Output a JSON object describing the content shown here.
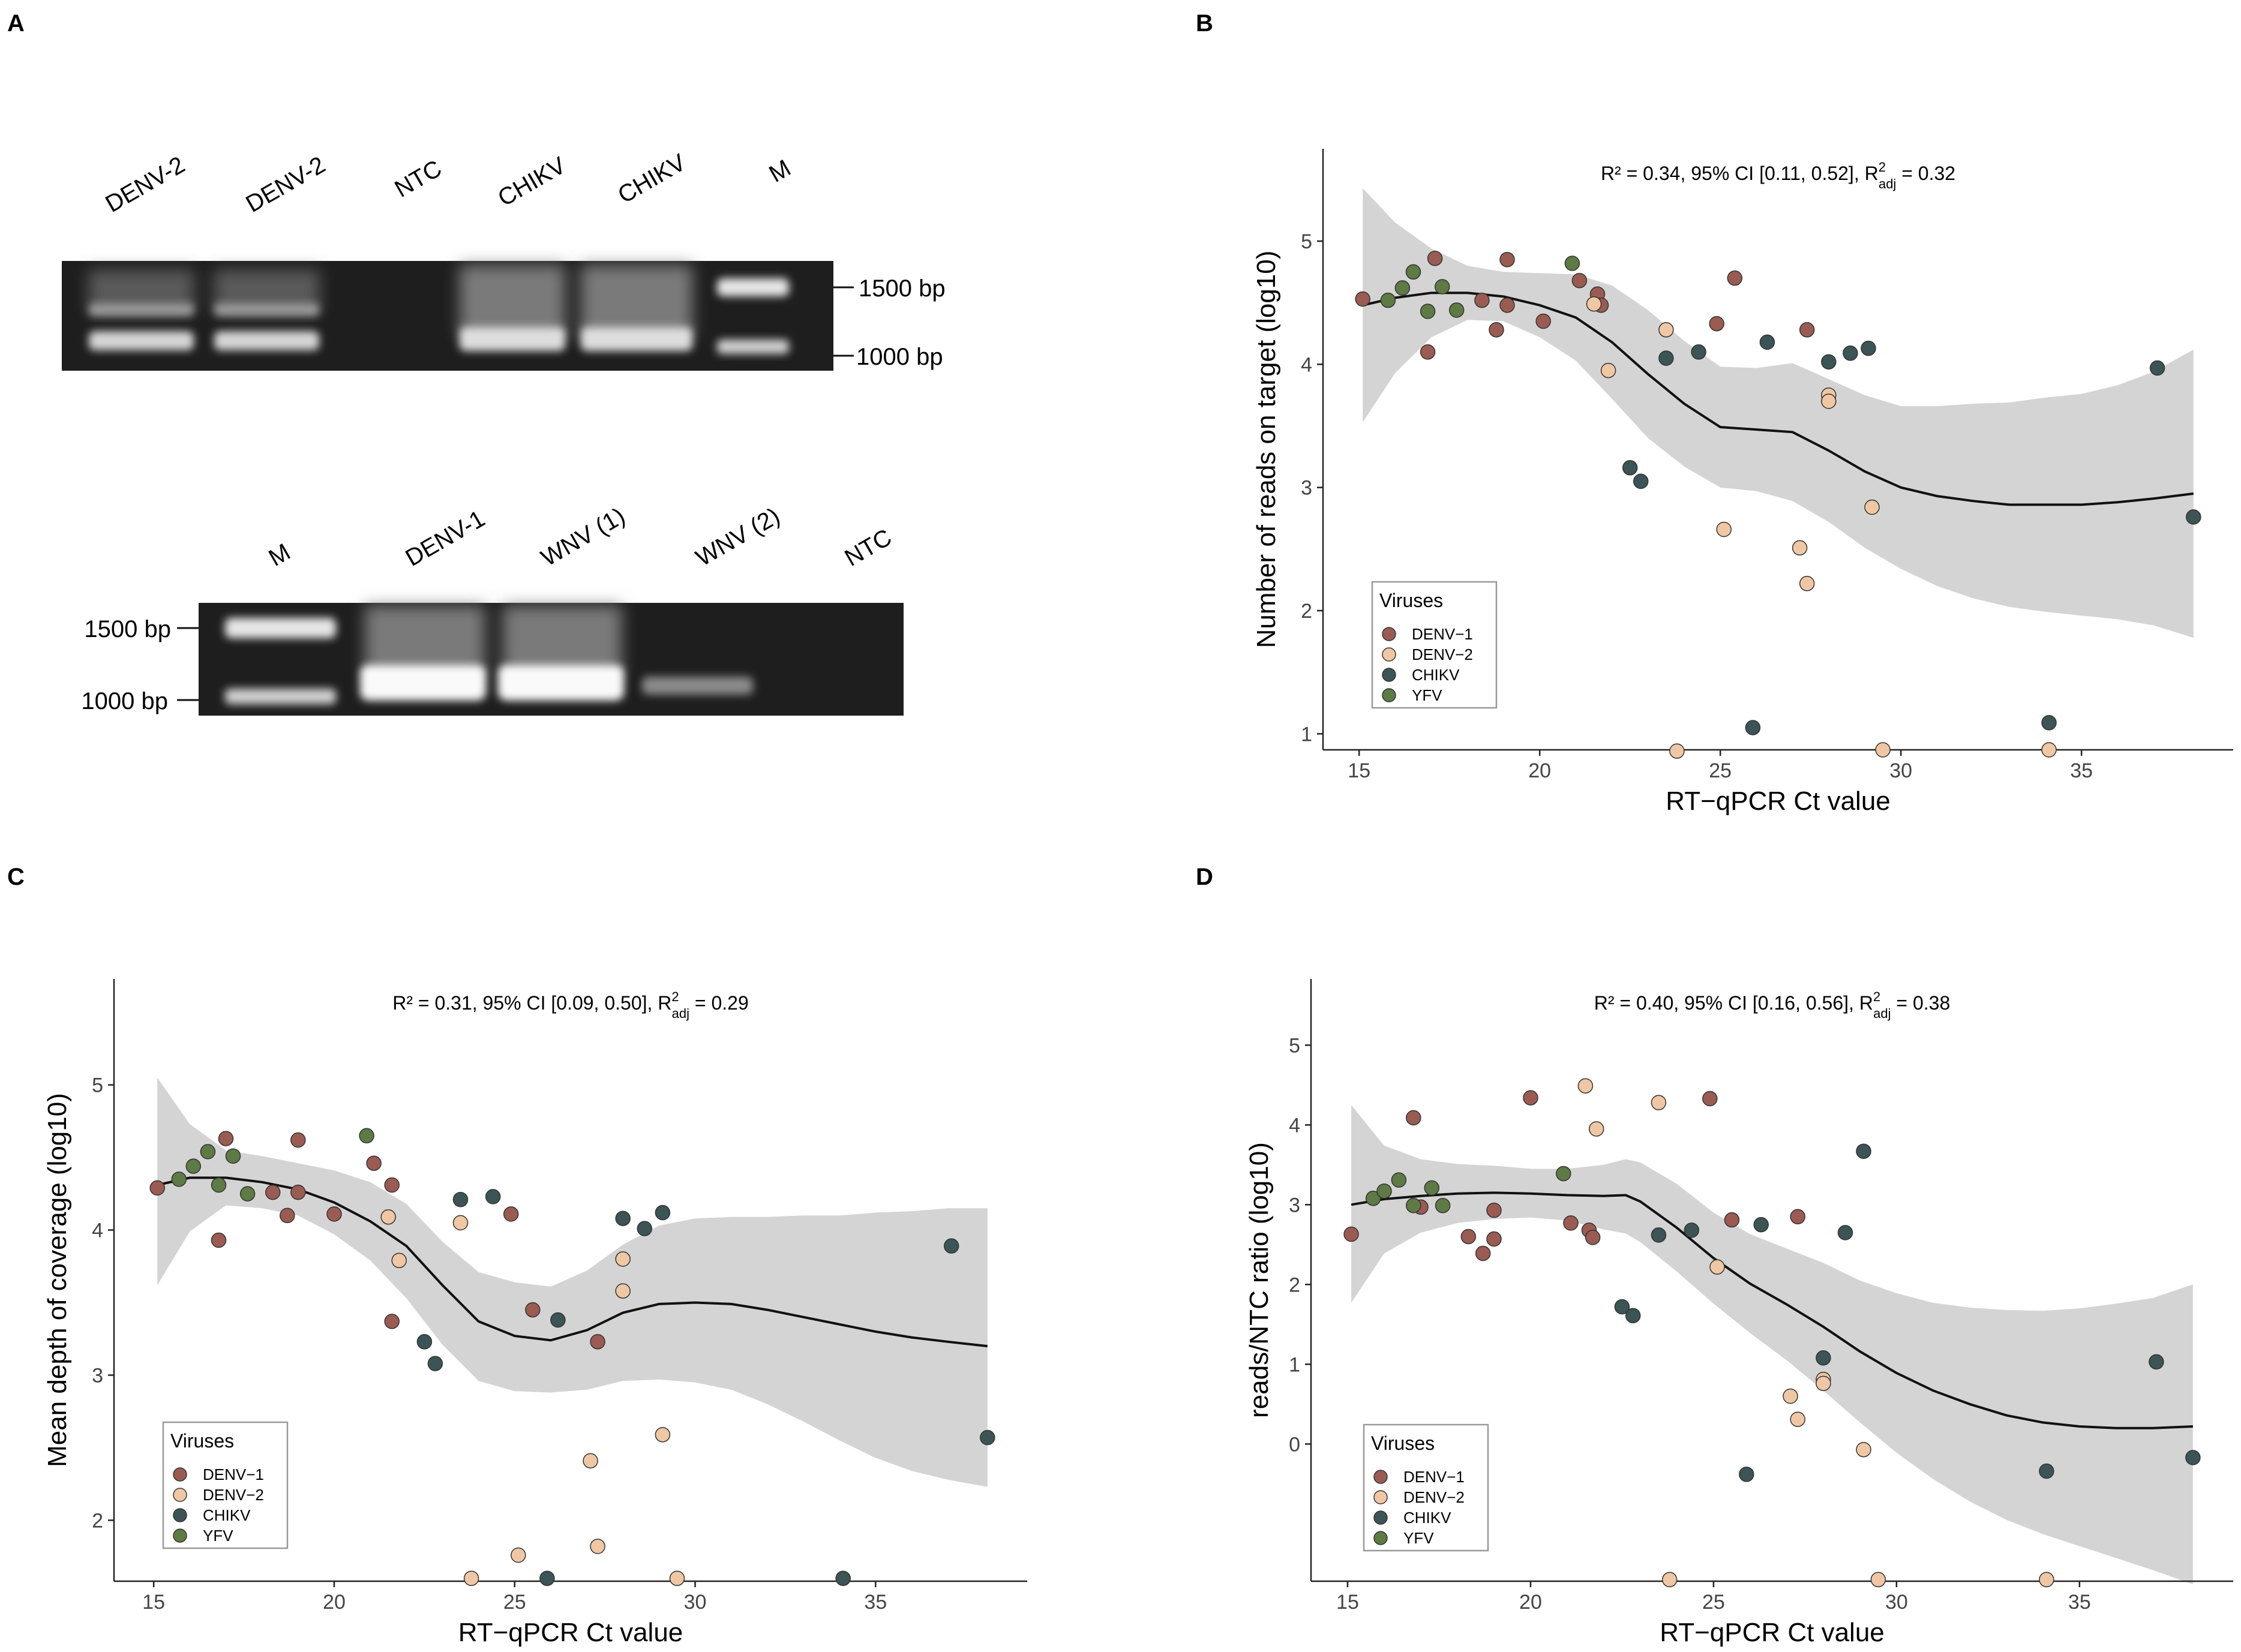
{
  "panel_letters": [
    "A",
    "B",
    "C",
    "D"
  ],
  "gel_top": {
    "lane_labels": [
      "DENV-2",
      "DENV-2",
      "NTC",
      "CHIKV",
      "CHIKV",
      "M"
    ],
    "marker_labels": [
      "1500 bp",
      "1000 bp"
    ]
  },
  "gel_bottom": {
    "lane_labels": [
      "M",
      "DENV-1",
      "WNV (1)",
      "WNV (2)",
      "NTC"
    ],
    "marker_labels": [
      "1500 bp",
      "1000 bp"
    ]
  },
  "colors": {
    "DENV-1": "#9a5b53",
    "DENV-2": "#f0c7a4",
    "CHIKV": "#3c5455",
    "YFV": "#5e7a45",
    "band": "#f2f2f2",
    "ribbon": "#d4d4d4"
  },
  "chart_data": [
    {
      "id": "B",
      "type": "scatter",
      "title": "",
      "annotation": {
        "pre": "R² = 0.34, 95% CI [0.11, 0.52], R",
        "sup": "2",
        "sub": "adj",
        "post": " = 0.32"
      },
      "xlabel": "RT−qPCR Ct value",
      "ylabel": "Number of reads on target (log10)",
      "xlim": [
        14,
        39.2
      ],
      "ylim": [
        0.87,
        5.75
      ],
      "xticks": [
        15,
        20,
        25,
        30,
        35
      ],
      "yticks": [
        1,
        2,
        3,
        4,
        5
      ],
      "legend": {
        "title": "Viruses",
        "position": "bottom-left",
        "entries": [
          "DENV−1",
          "DENV−2",
          "CHIKV",
          "YFV"
        ]
      },
      "series": [
        {
          "name": "DENV-1",
          "points": [
            [
              15.1,
              4.53
            ],
            [
              16.9,
              4.1
            ],
            [
              17.1,
              4.86
            ],
            [
              18.4,
              4.52
            ],
            [
              18.8,
              4.28
            ],
            [
              19.1,
              4.85
            ],
            [
              19.1,
              4.48
            ],
            [
              20.1,
              4.35
            ],
            [
              21.1,
              4.68
            ],
            [
              21.6,
              4.57
            ],
            [
              21.7,
              4.48
            ],
            [
              24.9,
              4.33
            ],
            [
              25.4,
              4.7
            ],
            [
              27.4,
              4.28
            ]
          ]
        },
        {
          "name": "DENV-2",
          "points": [
            [
              21.5,
              4.49
            ],
            [
              21.9,
              3.95
            ],
            [
              23.5,
              4.28
            ],
            [
              23.8,
              0.86
            ],
            [
              25.1,
              2.66
            ],
            [
              27.2,
              2.51
            ],
            [
              27.4,
              2.22
            ],
            [
              28.0,
              3.75
            ],
            [
              28.0,
              3.7
            ],
            [
              29.2,
              2.84
            ],
            [
              29.5,
              0.87
            ],
            [
              34.1,
              0.87
            ]
          ]
        },
        {
          "name": "CHIKV",
          "points": [
            [
              22.5,
              3.16
            ],
            [
              22.8,
              3.05
            ],
            [
              23.5,
              4.05
            ],
            [
              24.4,
              4.1
            ],
            [
              25.9,
              1.05
            ],
            [
              26.3,
              4.18
            ],
            [
              28.0,
              4.02
            ],
            [
              28.6,
              4.09
            ],
            [
              29.1,
              4.13
            ],
            [
              34.1,
              1.09
            ],
            [
              37.1,
              3.97
            ],
            [
              38.1,
              2.76
            ]
          ]
        },
        {
          "name": "YFV",
          "points": [
            [
              15.8,
              4.52
            ],
            [
              16.2,
              4.62
            ],
            [
              16.5,
              4.75
            ],
            [
              16.9,
              4.43
            ],
            [
              17.3,
              4.63
            ],
            [
              17.7,
              4.44
            ],
            [
              20.9,
              4.82
            ]
          ]
        }
      ],
      "trend": {
        "x": [
          15.1,
          16,
          17,
          18,
          19,
          20,
          21,
          22,
          23,
          24,
          25,
          26,
          27,
          28,
          29,
          30,
          31,
          32,
          33,
          34,
          35,
          36,
          37,
          38.1
        ],
        "y": [
          4.48,
          4.54,
          4.58,
          4.58,
          4.55,
          4.48,
          4.38,
          4.18,
          3.92,
          3.68,
          3.49,
          3.47,
          3.45,
          3.3,
          3.13,
          3.0,
          2.93,
          2.89,
          2.86,
          2.86,
          2.86,
          2.88,
          2.91,
          2.95
        ],
        "lower": [
          3.53,
          3.93,
          4.22,
          4.36,
          4.35,
          4.22,
          4.03,
          3.72,
          3.4,
          3.17,
          3.0,
          2.97,
          2.89,
          2.72,
          2.51,
          2.34,
          2.2,
          2.1,
          2.03,
          1.99,
          1.96,
          1.93,
          1.88,
          1.78
        ],
        "upper": [
          5.43,
          5.15,
          4.94,
          4.8,
          4.75,
          4.74,
          4.73,
          4.64,
          4.44,
          4.19,
          3.98,
          3.97,
          4.01,
          3.88,
          3.75,
          3.66,
          3.66,
          3.68,
          3.69,
          3.73,
          3.76,
          3.83,
          3.94,
          4.12
        ]
      }
    },
    {
      "id": "C",
      "type": "scatter",
      "title": "",
      "annotation": {
        "pre": "R² = 0.31, 95% CI [0.09, 0.50], R",
        "sup": "2",
        "sub": "adj",
        "post": " = 0.29"
      },
      "xlabel": "RT−qPCR Ct value",
      "ylabel": "Mean depth of coverage (log10)",
      "xlim": [
        13.9,
        39.2
      ],
      "ylim": [
        1.58,
        5.73
      ],
      "xticks": [
        15,
        20,
        25,
        30,
        35
      ],
      "yticks": [
        2,
        3,
        4,
        5
      ],
      "legend": {
        "title": "Viruses",
        "position": "bottom-left",
        "entries": [
          "DENV−1",
          "DENV−2",
          "CHIKV",
          "YFV"
        ]
      },
      "series": [
        {
          "name": "DENV-1",
          "points": [
            [
              15.1,
              4.29
            ],
            [
              16.8,
              3.93
            ],
            [
              17.0,
              4.63
            ],
            [
              18.3,
              4.26
            ],
            [
              18.7,
              4.1
            ],
            [
              19.0,
              4.62
            ],
            [
              19.0,
              4.26
            ],
            [
              20.0,
              4.11
            ],
            [
              21.1,
              4.46
            ],
            [
              21.6,
              4.31
            ],
            [
              21.6,
              3.37
            ],
            [
              24.9,
              4.11
            ],
            [
              25.5,
              3.45
            ],
            [
              27.3,
              3.23
            ]
          ]
        },
        {
          "name": "DENV-2",
          "points": [
            [
              21.5,
              4.09
            ],
            [
              21.8,
              3.79
            ],
            [
              23.5,
              4.05
            ],
            [
              23.8,
              1.6
            ],
            [
              25.1,
              1.76
            ],
            [
              27.1,
              2.41
            ],
            [
              27.3,
              1.82
            ],
            [
              28.0,
              3.8
            ],
            [
              28.0,
              3.58
            ],
            [
              29.1,
              2.59
            ],
            [
              29.5,
              1.6
            ]
          ]
        },
        {
          "name": "CHIKV",
          "points": [
            [
              22.5,
              3.23
            ],
            [
              22.8,
              3.08
            ],
            [
              23.5,
              4.21
            ],
            [
              24.4,
              4.23
            ],
            [
              25.9,
              1.6
            ],
            [
              26.2,
              3.38
            ],
            [
              28.0,
              4.08
            ],
            [
              28.6,
              4.01
            ],
            [
              29.1,
              4.12
            ],
            [
              34.1,
              1.6
            ],
            [
              37.1,
              3.89
            ],
            [
              38.1,
              2.57
            ]
          ]
        },
        {
          "name": "YFV",
          "points": [
            [
              15.7,
              4.35
            ],
            [
              16.1,
              4.44
            ],
            [
              16.5,
              4.54
            ],
            [
              16.8,
              4.31
            ],
            [
              17.2,
              4.51
            ],
            [
              17.6,
              4.25
            ],
            [
              20.9,
              4.65
            ]
          ]
        }
      ],
      "trend": {
        "x": [
          15.1,
          16,
          17,
          18,
          19,
          20,
          21,
          22,
          23,
          24,
          25,
          26,
          27,
          28,
          29,
          30,
          31,
          32,
          33,
          34,
          35,
          36,
          37,
          38.1
        ],
        "y": [
          4.31,
          4.36,
          4.36,
          4.33,
          4.28,
          4.19,
          4.06,
          3.89,
          3.62,
          3.37,
          3.27,
          3.24,
          3.31,
          3.43,
          3.49,
          3.5,
          3.49,
          3.45,
          3.4,
          3.35,
          3.3,
          3.26,
          3.23,
          3.2
        ],
        "lower": [
          3.62,
          3.99,
          4.17,
          4.15,
          4.1,
          3.97,
          3.79,
          3.53,
          3.21,
          2.96,
          2.89,
          2.88,
          2.9,
          2.96,
          2.97,
          2.95,
          2.9,
          2.8,
          2.68,
          2.55,
          2.43,
          2.34,
          2.28,
          2.23
        ],
        "upper": [
          5.05,
          4.73,
          4.55,
          4.51,
          4.46,
          4.41,
          4.33,
          4.18,
          3.92,
          3.71,
          3.64,
          3.61,
          3.72,
          3.9,
          4.03,
          4.08,
          4.09,
          4.09,
          4.1,
          4.1,
          4.12,
          4.13,
          4.15,
          4.15
        ]
      }
    },
    {
      "id": "D",
      "type": "scatter",
      "title": "",
      "annotation": {
        "pre": "R² = 0.40, 95% CI [0.16, 0.56], R",
        "sup": "2",
        "sub": "adj",
        "post": " = 0.38"
      },
      "xlabel": "RT−qPCR Ct value",
      "ylabel": "reads/NTC ratio (log10)",
      "xlim": [
        14,
        39.2
      ],
      "ylim": [
        -1.72,
        5.83
      ],
      "xticks": [
        15,
        20,
        25,
        30,
        35
      ],
      "yticks": [
        0,
        1,
        2,
        3,
        4,
        5
      ],
      "legend": {
        "title": "Viruses",
        "position": "bottom-left",
        "entries": [
          "DENV−1",
          "DENV−2",
          "CHIKV",
          "YFV"
        ]
      },
      "series": [
        {
          "name": "DENV-1",
          "points": [
            [
              15.1,
              2.63
            ],
            [
              16.8,
              4.09
            ],
            [
              17.0,
              2.97
            ],
            [
              18.3,
              2.6
            ],
            [
              18.7,
              2.39
            ],
            [
              19.0,
              2.93
            ],
            [
              19.0,
              2.57
            ],
            [
              20.0,
              4.34
            ],
            [
              21.1,
              2.77
            ],
            [
              21.6,
              2.68
            ],
            [
              21.7,
              2.59
            ],
            [
              24.9,
              4.33
            ],
            [
              25.5,
              2.81
            ],
            [
              27.3,
              2.85
            ]
          ]
        },
        {
          "name": "DENV-2",
          "points": [
            [
              21.5,
              4.49
            ],
            [
              21.8,
              3.95
            ],
            [
              23.5,
              4.28
            ],
            [
              23.8,
              -1.7
            ],
            [
              25.1,
              2.22
            ],
            [
              27.1,
              0.6
            ],
            [
              27.3,
              0.31
            ],
            [
              28.0,
              0.81
            ],
            [
              28.0,
              0.76
            ],
            [
              29.1,
              -0.07
            ],
            [
              29.5,
              -1.7
            ],
            [
              34.1,
              -1.7
            ]
          ]
        },
        {
          "name": "CHIKV",
          "points": [
            [
              22.5,
              1.72
            ],
            [
              22.8,
              1.61
            ],
            [
              23.5,
              2.62
            ],
            [
              24.4,
              2.68
            ],
            [
              25.9,
              -0.38
            ],
            [
              26.3,
              2.75
            ],
            [
              28.0,
              1.08
            ],
            [
              28.6,
              2.65
            ],
            [
              29.1,
              3.67
            ],
            [
              34.1,
              -0.34
            ],
            [
              37.1,
              1.03
            ],
            [
              38.1,
              -0.17
            ]
          ]
        },
        {
          "name": "YFV",
          "points": [
            [
              15.7,
              3.08
            ],
            [
              16.0,
              3.17
            ],
            [
              16.4,
              3.31
            ],
            [
              16.8,
              2.99
            ],
            [
              17.3,
              3.21
            ],
            [
              17.6,
              2.99
            ],
            [
              20.9,
              3.39
            ]
          ]
        }
      ],
      "trend": {
        "x": [
          15.1,
          16,
          17,
          18,
          19,
          20,
          21,
          22,
          22.6,
          23,
          24,
          25,
          26,
          27,
          28,
          29,
          30,
          31,
          32,
          33,
          34,
          35,
          36,
          37,
          38.1
        ],
        "y": [
          3.0,
          3.07,
          3.11,
          3.14,
          3.15,
          3.14,
          3.12,
          3.11,
          3.12,
          3.04,
          2.71,
          2.33,
          2.01,
          1.75,
          1.47,
          1.16,
          0.89,
          0.67,
          0.5,
          0.36,
          0.27,
          0.22,
          0.2,
          0.2,
          0.22
        ],
        "lower": [
          1.77,
          2.39,
          2.65,
          2.77,
          2.82,
          2.84,
          2.8,
          2.69,
          2.64,
          2.53,
          2.16,
          1.76,
          1.39,
          1.05,
          0.67,
          0.27,
          -0.11,
          -0.44,
          -0.72,
          -0.95,
          -1.13,
          -1.28,
          -1.43,
          -1.58,
          -1.76
        ],
        "upper": [
          4.25,
          3.74,
          3.57,
          3.51,
          3.49,
          3.45,
          3.45,
          3.5,
          3.57,
          3.53,
          3.26,
          2.9,
          2.63,
          2.45,
          2.27,
          2.05,
          1.89,
          1.77,
          1.71,
          1.68,
          1.67,
          1.7,
          1.76,
          1.83,
          2.0
        ]
      }
    }
  ]
}
